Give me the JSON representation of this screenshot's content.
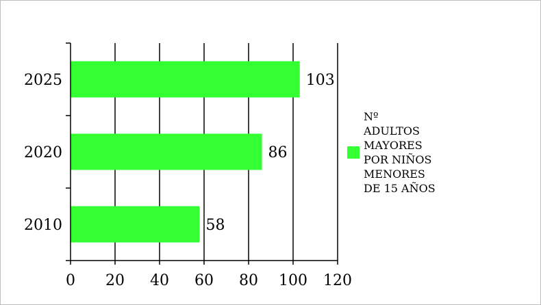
{
  "chart_data": {
    "type": "bar",
    "orientation": "horizontal",
    "categories": [
      "2025",
      "2020",
      "2010"
    ],
    "series": [
      {
        "name": "Nº ADULTOS MAYORES POR NIÑOS MENORES DE 15 AÑOS",
        "values": [
          103,
          86,
          58
        ]
      }
    ],
    "data_labels": [
      "103",
      "86",
      "58"
    ],
    "x_ticks": [
      "0",
      "20",
      "40",
      "60",
      "80",
      "100",
      "120"
    ],
    "xlim": [
      0,
      120
    ],
    "grid": "vertical",
    "legend_position": "right",
    "bar_color": "#33ff33"
  },
  "legend": {
    "label": "Nº\nADULTOS\nMAYORES\nPOR NIÑOS\nMENORES\nDE 15 AÑOS"
  }
}
